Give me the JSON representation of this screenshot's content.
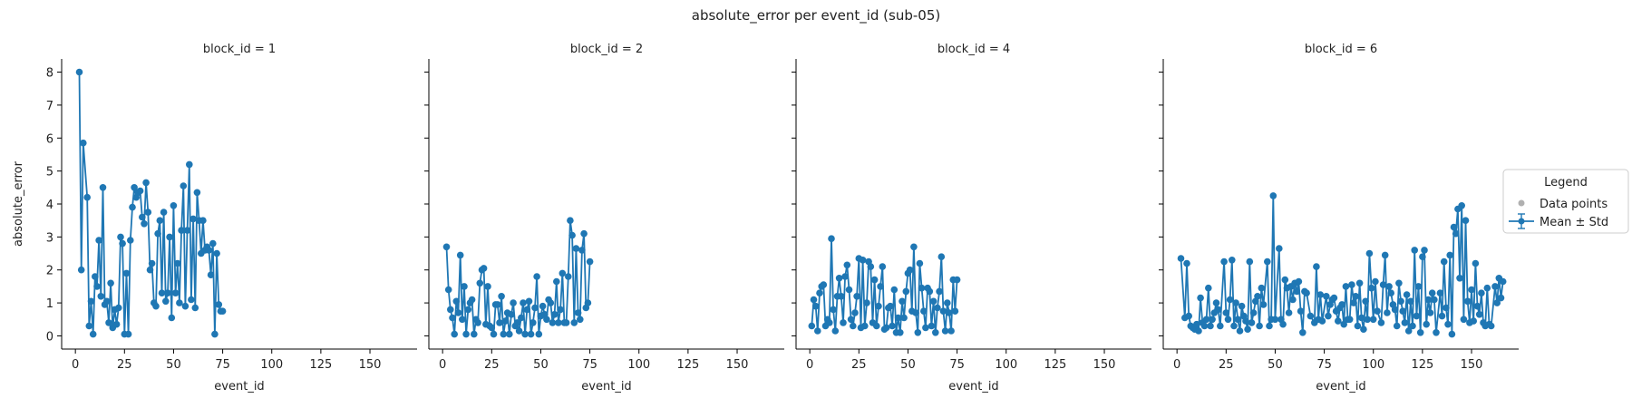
{
  "figure": {
    "title": "absolute_error per event_id (sub-05)",
    "series_color": "#1f77b4",
    "raw_color": "#b0b0b0"
  },
  "legend": {
    "title": "Legend",
    "placement": "right",
    "items": [
      {
        "label": "Data points",
        "marker": "dot",
        "color": "#b0b0b0"
      },
      {
        "label": "Mean ± Std",
        "marker": "errorbar-line",
        "color": "#1f77b4"
      }
    ]
  },
  "chart_data": [
    {
      "type": "line",
      "title": "block_id = 1",
      "xlabel": "event_id",
      "ylabel": "absolute_error",
      "xlim": [
        -7,
        174
      ],
      "ylim": [
        -0.4,
        8.4
      ],
      "xticks": [
        0,
        25,
        50,
        75,
        100,
        125,
        150
      ],
      "yticks": [
        0,
        1,
        2,
        3,
        4,
        5,
        6,
        7,
        8
      ],
      "x": [
        2,
        3,
        4,
        6,
        7,
        8,
        9,
        10,
        11,
        12,
        13,
        14,
        15,
        16,
        17,
        18,
        19,
        20,
        21,
        22,
        23,
        24,
        25,
        26,
        27,
        28,
        29,
        30,
        31,
        32,
        33,
        34,
        35,
        36,
        37,
        38,
        39,
        40,
        41,
        42,
        43,
        44,
        45,
        46,
        47,
        48,
        49,
        50,
        51,
        52,
        53,
        54,
        55,
        56,
        57,
        58,
        59,
        60,
        61,
        62,
        63,
        64,
        65,
        66,
        67,
        68,
        69,
        70,
        71,
        72,
        73,
        74,
        75
      ],
      "y": [
        8.0,
        2.0,
        5.85,
        4.2,
        0.3,
        1.05,
        0.05,
        1.8,
        1.5,
        2.9,
        1.2,
        4.5,
        0.95,
        1.05,
        0.4,
        1.6,
        0.25,
        0.8,
        0.35,
        0.85,
        3.0,
        2.8,
        0.05,
        1.9,
        0.05,
        2.9,
        3.9,
        4.5,
        4.2,
        4.35,
        4.4,
        3.6,
        3.4,
        4.65,
        3.75,
        2.0,
        2.2,
        1.0,
        0.9,
        3.1,
        3.5,
        1.3,
        3.75,
        1.05,
        1.3,
        3.0,
        0.55,
        3.95,
        1.3,
        2.2,
        1.0,
        3.2,
        4.55,
        0.9,
        3.2,
        5.2,
        1.1,
        3.55,
        0.85,
        4.35,
        3.5,
        2.5,
        3.5,
        2.6,
        2.7,
        2.6,
        1.85,
        2.8,
        0.05,
        2.5,
        0.95,
        0.75,
        0.75
      ]
    },
    {
      "type": "line",
      "title": "block_id = 2",
      "xlabel": "event_id",
      "ylabel": "",
      "xlim": [
        -7,
        174
      ],
      "ylim": [
        -0.4,
        8.4
      ],
      "xticks": [
        0,
        25,
        50,
        75,
        100,
        125,
        150
      ],
      "yticks": [
        0,
        1,
        2,
        3,
        4,
        5,
        6,
        7,
        8
      ],
      "x": [
        2,
        3,
        4,
        5,
        6,
        7,
        8,
        9,
        10,
        11,
        12,
        13,
        14,
        15,
        16,
        17,
        18,
        19,
        20,
        21,
        22,
        23,
        24,
        25,
        26,
        27,
        28,
        29,
        30,
        31,
        32,
        33,
        34,
        35,
        36,
        37,
        38,
        39,
        40,
        41,
        42,
        43,
        44,
        45,
        46,
        47,
        48,
        49,
        50,
        51,
        52,
        53,
        54,
        55,
        56,
        57,
        58,
        59,
        60,
        61,
        62,
        63,
        64,
        65,
        66,
        67,
        68,
        69,
        70,
        71,
        72,
        73,
        74,
        75
      ],
      "y": [
        2.7,
        1.4,
        0.8,
        0.55,
        0.05,
        1.05,
        0.7,
        2.45,
        0.5,
        1.5,
        0.05,
        0.8,
        1.0,
        1.1,
        0.05,
        0.5,
        0.4,
        1.6,
        2.0,
        2.05,
        0.35,
        1.5,
        0.3,
        0.25,
        0.05,
        0.95,
        0.95,
        0.4,
        1.2,
        0.05,
        0.45,
        0.7,
        0.05,
        0.65,
        1.0,
        0.3,
        0.4,
        0.15,
        0.55,
        1.0,
        0.05,
        0.8,
        1.05,
        0.05,
        0.4,
        0.85,
        1.8,
        0.05,
        0.6,
        0.9,
        0.65,
        0.5,
        1.1,
        1.0,
        0.4,
        0.65,
        1.65,
        0.4,
        0.8,
        1.9,
        0.4,
        0.4,
        1.8,
        3.5,
        3.05,
        0.4,
        2.65,
        0.7,
        0.5,
        2.6,
        3.1,
        0.85,
        1.0,
        2.25
      ]
    },
    {
      "type": "line",
      "title": "block_id = 4",
      "xlabel": "event_id",
      "ylabel": "",
      "xlim": [
        -7,
        174
      ],
      "ylim": [
        -0.4,
        8.4
      ],
      "xticks": [
        0,
        25,
        50,
        75,
        100,
        125,
        150
      ],
      "yticks": [
        0,
        1,
        2,
        3,
        4,
        5,
        6,
        7,
        8
      ],
      "x": [
        1,
        2,
        3,
        4,
        5,
        6,
        7,
        8,
        9,
        10,
        11,
        12,
        13,
        14,
        15,
        16,
        17,
        18,
        19,
        20,
        21,
        22,
        23,
        24,
        25,
        26,
        27,
        28,
        29,
        30,
        31,
        32,
        33,
        34,
        35,
        36,
        37,
        38,
        39,
        40,
        41,
        42,
        43,
        44,
        45,
        46,
        47,
        48,
        49,
        50,
        51,
        52,
        53,
        54,
        55,
        56,
        57,
        58,
        59,
        60,
        61,
        62,
        63,
        64,
        65,
        66,
        67,
        68,
        69,
        70,
        71,
        72,
        73,
        74,
        75
      ],
      "y": [
        0.3,
        1.1,
        0.9,
        0.15,
        1.3,
        1.5,
        1.55,
        0.3,
        0.5,
        0.4,
        2.95,
        0.8,
        0.15,
        1.2,
        1.75,
        1.2,
        0.4,
        1.8,
        2.15,
        1.4,
        0.5,
        0.3,
        0.7,
        1.2,
        2.35,
        0.25,
        2.3,
        0.3,
        1.0,
        2.25,
        2.1,
        0.4,
        1.7,
        0.3,
        0.9,
        1.5,
        2.1,
        0.2,
        0.25,
        0.85,
        0.9,
        0.3,
        1.4,
        0.1,
        0.55,
        0.1,
        1.05,
        0.55,
        1.35,
        1.9,
        2.0,
        0.75,
        2.7,
        0.7,
        0.1,
        2.2,
        1.45,
        0.75,
        0.25,
        1.45,
        1.35,
        0.3,
        1.05,
        0.1,
        0.85,
        1.35,
        2.4,
        0.75,
        0.15,
        1.0,
        0.7,
        0.15,
        1.7,
        0.75,
        1.7
      ]
    },
    {
      "type": "line",
      "title": "block_id = 6",
      "xlabel": "event_id",
      "ylabel": "",
      "xlim": [
        -7,
        174
      ],
      "ylim": [
        -0.4,
        8.4
      ],
      "xticks": [
        0,
        25,
        50,
        75,
        100,
        125,
        150
      ],
      "yticks": [
        0,
        1,
        2,
        3,
        4,
        5,
        6,
        7,
        8
      ],
      "x": [
        2,
        4,
        5,
        6,
        7,
        8,
        9,
        10,
        11,
        12,
        13,
        14,
        15,
        16,
        17,
        18,
        19,
        20,
        21,
        22,
        24,
        25,
        26,
        27,
        28,
        29,
        30,
        31,
        32,
        33,
        34,
        35,
        36,
        37,
        38,
        39,
        40,
        41,
        42,
        43,
        44,
        46,
        47,
        48,
        49,
        50,
        52,
        53,
        54,
        55,
        56,
        57,
        58,
        59,
        60,
        61,
        62,
        63,
        64,
        65,
        66,
        68,
        70,
        71,
        72,
        73,
        74,
        76,
        77,
        78,
        79,
        80,
        81,
        82,
        83,
        84,
        85,
        86,
        87,
        88,
        89,
        90,
        91,
        92,
        93,
        94,
        95,
        96,
        97,
        98,
        99,
        100,
        101,
        102,
        104,
        105,
        106,
        107,
        108,
        109,
        110,
        111,
        112,
        113,
        114,
        115,
        116,
        117,
        118,
        119,
        120,
        121,
        122,
        123,
        124,
        125,
        126,
        127,
        128,
        129,
        130,
        131,
        132,
        134,
        135,
        136,
        137,
        138,
        139,
        140,
        141,
        142,
        143,
        144,
        145,
        146,
        147,
        148,
        149,
        150,
        151,
        152,
        153,
        154,
        155,
        156,
        157,
        158,
        159,
        160,
        162,
        163,
        164,
        165,
        166
      ],
      "y": [
        2.35,
        0.55,
        2.2,
        0.6,
        0.3,
        0.25,
        0.2,
        0.35,
        0.15,
        1.15,
        0.4,
        0.3,
        0.5,
        1.45,
        0.3,
        0.5,
        0.7,
        1.0,
        0.8,
        0.3,
        2.25,
        0.7,
        0.5,
        1.1,
        2.3,
        0.3,
        1.0,
        0.5,
        0.15,
        0.9,
        0.6,
        0.45,
        0.2,
        2.25,
        0.4,
        0.7,
        1.05,
        1.2,
        0.3,
        1.45,
        0.95,
        2.25,
        0.3,
        0.5,
        4.25,
        0.5,
        2.65,
        0.5,
        0.35,
        1.7,
        1.45,
        0.7,
        1.5,
        1.1,
        1.6,
        1.35,
        1.65,
        0.75,
        0.1,
        1.35,
        1.3,
        0.6,
        0.4,
        2.1,
        0.5,
        1.25,
        0.45,
        1.2,
        0.6,
        0.95,
        1.1,
        1.15,
        0.75,
        0.45,
        0.85,
        0.95,
        0.35,
        1.5,
        0.5,
        0.5,
        1.55,
        1.0,
        1.2,
        0.3,
        1.6,
        0.55,
        0.2,
        1.05,
        0.5,
        2.5,
        1.45,
        0.5,
        1.65,
        0.75,
        0.4,
        1.55,
        2.45,
        0.7,
        1.5,
        1.3,
        0.95,
        0.8,
        0.3,
        1.6,
        1.05,
        0.75,
        0.4,
        1.25,
        0.15,
        1.05,
        0.3,
        2.6,
        0.6,
        1.5,
        0.1,
        2.4,
        2.6,
        0.35,
        1.1,
        0.7,
        1.3,
        1.1,
        0.1,
        1.3,
        0.6,
        2.25,
        0.85,
        0.35,
        2.45,
        0.05,
        3.3,
        3.1,
        3.85,
        1.75,
        3.95,
        0.5,
        3.5,
        1.05,
        0.4,
        1.4,
        0.45,
        2.2,
        0.9,
        0.65,
        1.3,
        0.4,
        0.3,
        1.45,
        0.35,
        0.3,
        1.5,
        1.0,
        1.75,
        1.15,
        1.65
      ]
    }
  ]
}
